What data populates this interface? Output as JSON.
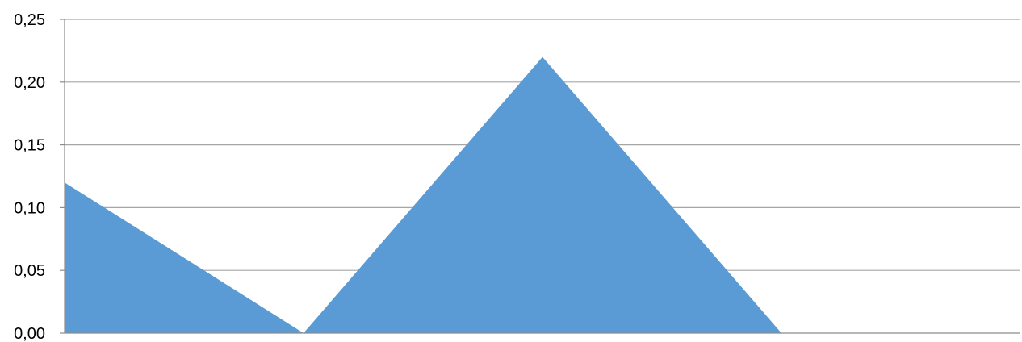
{
  "chart_data": {
    "type": "area",
    "x": [
      1,
      2,
      3,
      4,
      5
    ],
    "series": [
      {
        "values": [
          0.12,
          0.0,
          0.22,
          0.0,
          0.0
        ]
      }
    ],
    "ylim": [
      0,
      0.25
    ],
    "yticks": [
      0.0,
      0.05,
      0.1,
      0.15,
      0.2,
      0.25
    ],
    "ytick_labels": [
      "0,00",
      "0,05",
      "0,10",
      "0,15",
      "0,20",
      "0,25"
    ],
    "title": "",
    "xlabel": "",
    "ylabel": "",
    "grid": "horizontal",
    "legend": "none",
    "colors": {
      "fill": "#5b9bd5",
      "grid": "#a6a6a6",
      "axis": "#8c8c8c"
    }
  }
}
